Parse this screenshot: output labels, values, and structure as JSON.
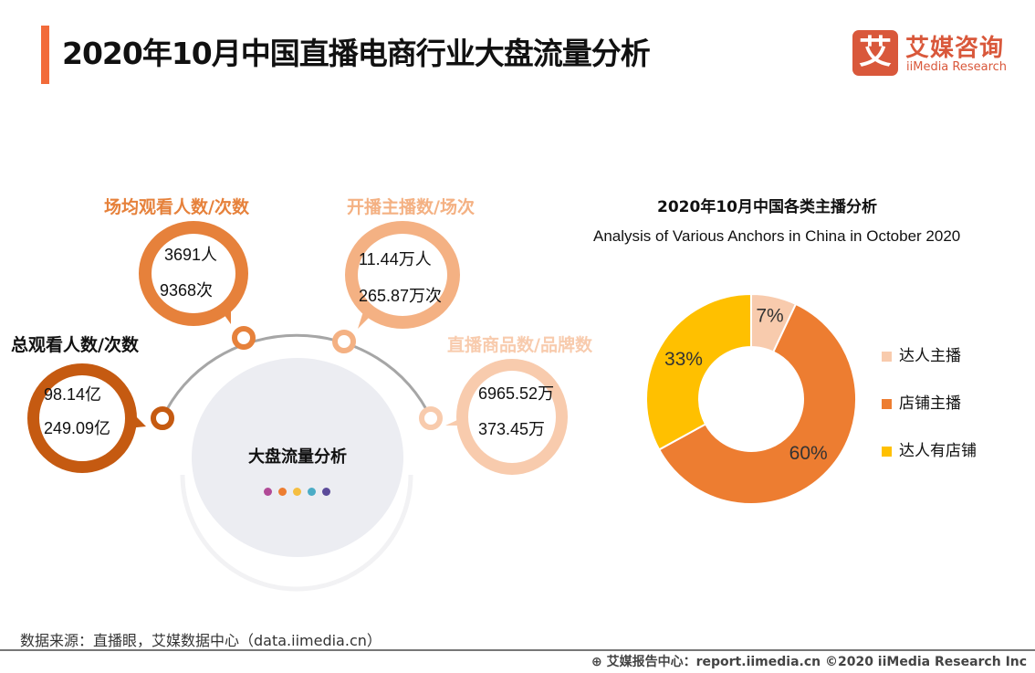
{
  "header": {
    "title": "2020年10月中国直播电商行业大盘流量分析"
  },
  "logo": {
    "mark": "艾",
    "name_cn": "艾媒咨询",
    "name_en": "iiMedia Research"
  },
  "infographic": {
    "center_title": "大盘流量分析",
    "dot_colors": [
      "#B14A97",
      "#ED7D31",
      "#F5BE41",
      "#4BACC6",
      "#5B4B9A"
    ],
    "bubbles": [
      {
        "label": "总观看人数/次数",
        "line1": "98.14亿",
        "line2": "249.09亿",
        "color": "#C55A11"
      },
      {
        "label": "场均观看人数/次数",
        "line1": "3691人",
        "line2": "9368次",
        "color": "#E6813B"
      },
      {
        "label": "开播主播数/场次",
        "line1": "11.44万人",
        "line2": "265.87万次",
        "color": "#F4B183"
      },
      {
        "label": "直播商品数/品牌数",
        "line1": "6965.52万",
        "line2": "373.45万",
        "color": "#F8CBAD"
      }
    ]
  },
  "chart_data": {
    "type": "pie",
    "donut": true,
    "title": "2020年10月中国各类主播分析",
    "subtitle": "Analysis of Various Anchors in China in October 2020",
    "categories": [
      "达人主播",
      "店铺主播",
      "达人有店铺"
    ],
    "values": [
      7,
      60,
      33
    ],
    "labels": [
      "7%",
      "60%",
      "33%"
    ],
    "colors": [
      "#F8CBAD",
      "#ED7D31",
      "#FFC000"
    ],
    "legend": "right"
  },
  "footer": {
    "source": "数据来源：直播眼，艾媒数据中心（data.iimedia.cn）",
    "copyright": "艾媒报告中心：report.iimedia.cn   ©2020  iiMedia Research  Inc"
  }
}
